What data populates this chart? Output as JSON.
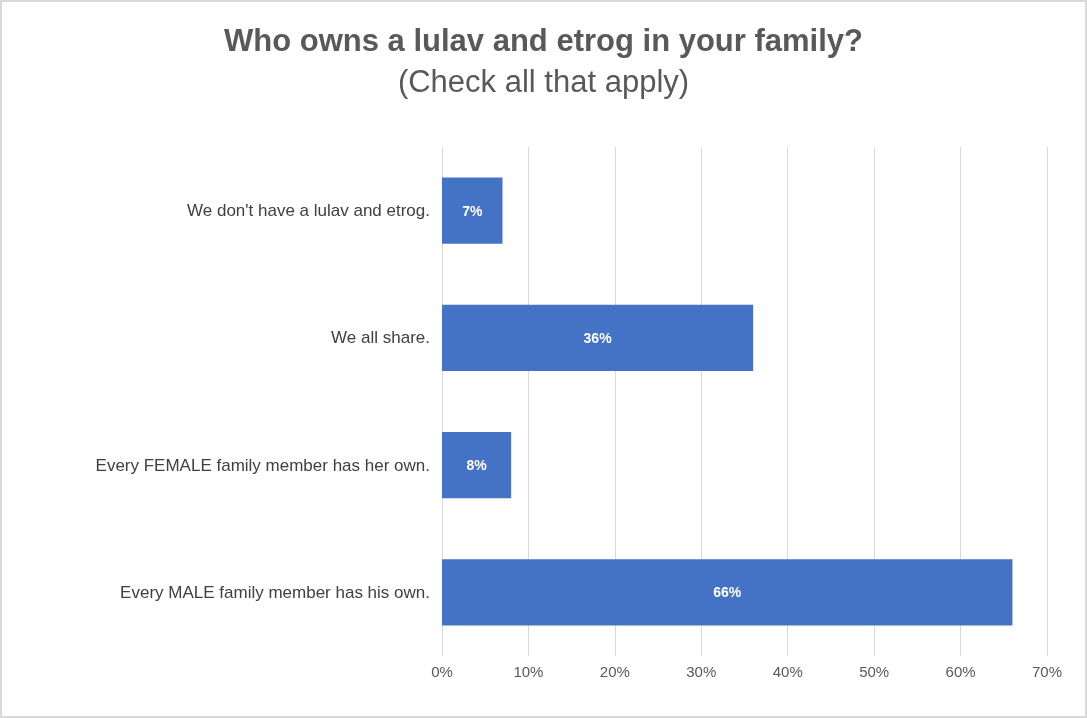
{
  "chart_data": {
    "type": "bar",
    "orientation": "horizontal",
    "title": "Who owns a lulav and etrog in your family?",
    "subtitle": "(Check all that apply)",
    "categories": [
      "We don't have a lulav and etrog.",
      "We all share.",
      "Every FEMALE family member has her own.",
      "Every MALE family member has his own."
    ],
    "values": [
      7,
      36,
      8,
      66
    ],
    "value_labels": [
      "7%",
      "36%",
      "8%",
      "66%"
    ],
    "color": "#4472c4",
    "xlim": [
      0,
      70
    ],
    "xticks": [
      {
        "value": 0,
        "label": "0%"
      },
      {
        "value": 10,
        "label": "10%"
      },
      {
        "value": 20,
        "label": "20%"
      },
      {
        "value": 30,
        "label": "30%"
      },
      {
        "value": 40,
        "label": "40%"
      },
      {
        "value": 50,
        "label": "50%"
      },
      {
        "value": 60,
        "label": "60%"
      },
      {
        "value": 70,
        "label": "70%"
      }
    ],
    "grid": "x"
  }
}
